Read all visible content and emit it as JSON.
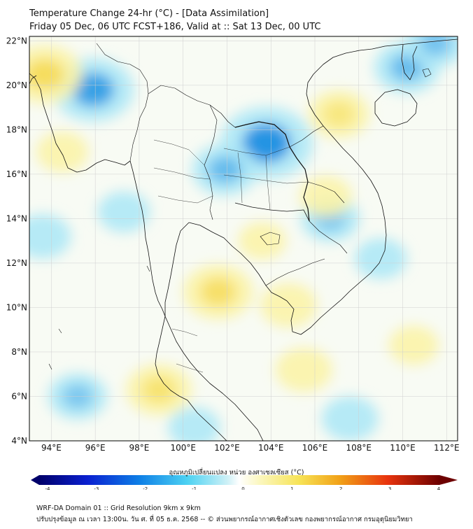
{
  "header": {
    "title_line1": "Temperature Change 24-hr (°C) - [Data Assimilation]",
    "title_line2": "Friday 05 Dec, 06 UTC FCST+186, Valid at :: Sat 13 Dec, 00 UTC"
  },
  "map": {
    "lon_ticks": [
      "94°E",
      "96°E",
      "98°E",
      "100°E",
      "102°E",
      "104°E",
      "106°E",
      "108°E",
      "110°E",
      "112°E"
    ],
    "lat_ticks": [
      "22°N",
      "20°N",
      "18°N",
      "16°N",
      "14°N",
      "12°N",
      "10°N",
      "8°N",
      "6°N",
      "4°N"
    ],
    "lon_values": [
      94,
      96,
      98,
      100,
      102,
      104,
      106,
      108,
      110,
      112
    ],
    "lat_values": [
      22,
      20,
      18,
      16,
      14,
      12,
      10,
      8,
      6,
      4
    ],
    "extent": {
      "lon_min": 93.0,
      "lon_max": 112.5,
      "lat_min": 4.0,
      "lat_max": 22.2
    },
    "warm_anomalies": [
      {
        "lon": 93.7,
        "lat": 20.5,
        "value": 1.6
      },
      {
        "lon": 107.1,
        "lat": 18.7,
        "value": 1.0
      },
      {
        "lon": 101.6,
        "lat": 10.7,
        "value": 1.4
      },
      {
        "lon": 98.9,
        "lat": 6.3,
        "value": 1.2
      },
      {
        "lon": 104.8,
        "lat": 10.1,
        "value": 0.8
      },
      {
        "lon": 105.5,
        "lat": 7.2,
        "value": 0.8
      },
      {
        "lon": 94.5,
        "lat": 17.0,
        "value": 0.6
      },
      {
        "lon": 110.5,
        "lat": 8.3,
        "value": 0.5
      },
      {
        "lon": 106.5,
        "lat": 15.0,
        "value": 0.6
      },
      {
        "lon": 103.6,
        "lat": 13.0,
        "value": 0.4
      }
    ],
    "cold_anomalies": [
      {
        "lon": 103.8,
        "lat": 17.4,
        "value": -2.4
      },
      {
        "lon": 95.9,
        "lat": 19.8,
        "value": -1.9
      },
      {
        "lon": 101.9,
        "lat": 16.2,
        "value": -1.2
      },
      {
        "lon": 110.2,
        "lat": 20.8,
        "value": -1.2
      },
      {
        "lon": 111.5,
        "lat": 21.9,
        "value": -1.0
      },
      {
        "lon": 95.2,
        "lat": 6.0,
        "value": -0.9
      },
      {
        "lon": 106.7,
        "lat": 14.0,
        "value": -0.9
      },
      {
        "lon": 93.6,
        "lat": 13.2,
        "value": -0.8
      },
      {
        "lon": 97.3,
        "lat": 14.3,
        "value": -0.6
      },
      {
        "lon": 109.0,
        "lat": 12.2,
        "value": -0.6
      },
      {
        "lon": 107.6,
        "lat": 5.0,
        "value": -0.8
      },
      {
        "lon": 100.5,
        "lat": 4.6,
        "value": -0.6
      }
    ]
  },
  "colorbar": {
    "label": "อุณหภูมิเปลี่ยนแปลง หน่วย องศาเซลเซียส (°C)",
    "tick_labels": [
      "-4",
      "-3",
      "-2",
      "-1",
      "0",
      "1",
      "2",
      "3",
      "4"
    ],
    "tick_values": [
      -4,
      -3,
      -2,
      -1,
      0,
      1,
      2,
      3,
      4
    ],
    "min": -4,
    "max": 4
  },
  "footer": {
    "line1": "WRF-DA Domain 01 :: Grid Resolution 9km x 9km",
    "line2": "ปรับปรุงข้อมูล ณ เวลา 13:00น. วัน ศ. ที่ 05 ธ.ค. 2568 -- © ส่วนพยากรณ์อากาศเชิงตัวเลข กองพยากรณ์อากาศ กรมอุตุนิยมวิทยา"
  },
  "colors": {
    "neutral": "#f8fbf4",
    "warm_light": "#fbf3a8",
    "warm_strong": "#f2cf2c",
    "cold_light": "#aee8f6",
    "cold_strong": "#0b86e0",
    "coast": "#111111",
    "grid": "#cfcfcf"
  }
}
